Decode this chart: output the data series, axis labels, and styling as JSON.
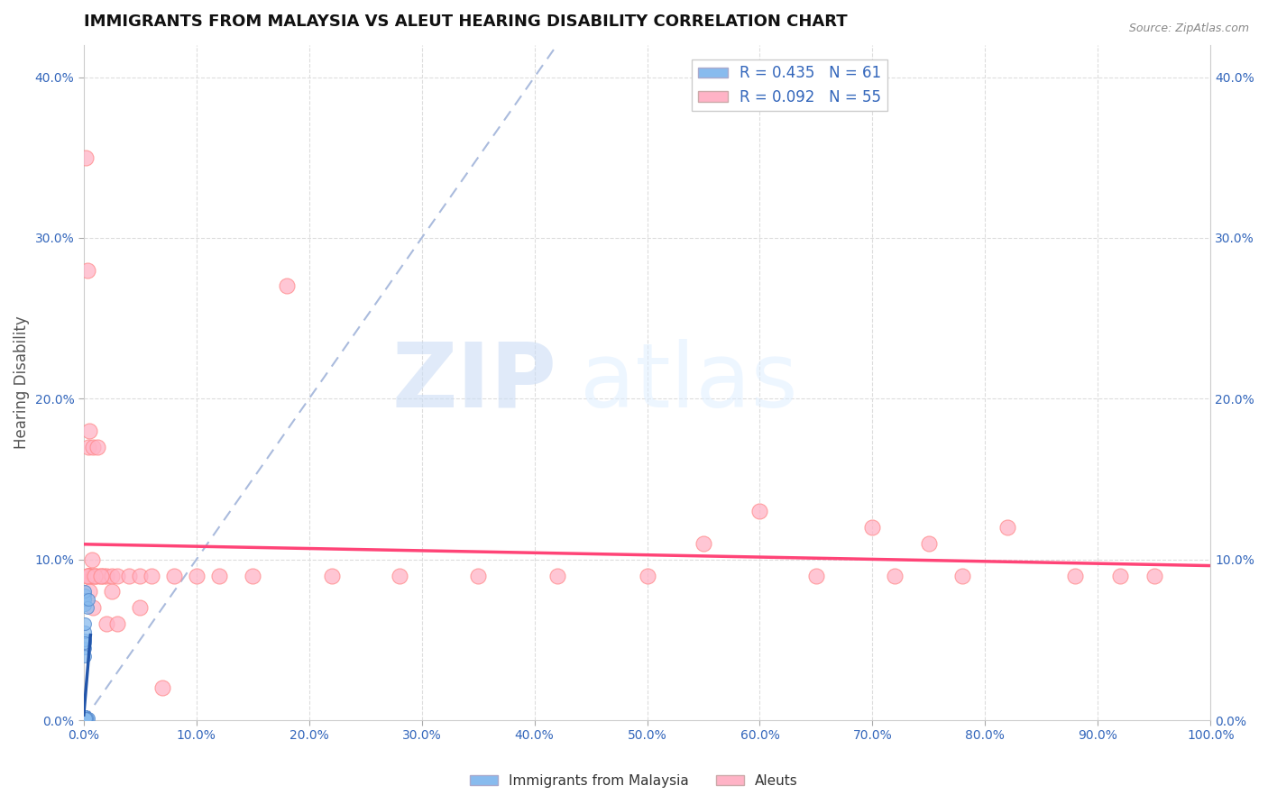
{
  "title": "IMMIGRANTS FROM MALAYSIA VS ALEUT HEARING DISABILITY CORRELATION CHART",
  "source_text": "Source: ZipAtlas.com",
  "ylabel": "Hearing Disability",
  "xlim": [
    0,
    1.0
  ],
  "ylim": [
    0,
    0.42
  ],
  "xticks": [
    0,
    0.1,
    0.2,
    0.3,
    0.4,
    0.5,
    0.6,
    0.7,
    0.8,
    0.9,
    1.0
  ],
  "xtick_labels": [
    "0.0%",
    "10.0%",
    "20.0%",
    "30.0%",
    "40.0%",
    "50.0%",
    "60.0%",
    "70.0%",
    "80.0%",
    "90.0%",
    "100.0%"
  ],
  "yticks": [
    0,
    0.1,
    0.2,
    0.3,
    0.4
  ],
  "ytick_labels": [
    "0.0%",
    "10.0%",
    "20.0%",
    "30.0%",
    "40.0%"
  ],
  "blue_color": "#88BBEE",
  "blue_edge_color": "#5588CC",
  "pink_color": "#FFB3C6",
  "pink_edge_color": "#FF8888",
  "blue_line_color": "#2255AA",
  "pink_line_color": "#FF4477",
  "ref_line_color": "#AABBDD",
  "grid_color": "#DDDDDD",
  "blue_R": 0.435,
  "blue_N": 61,
  "pink_R": 0.092,
  "pink_N": 55,
  "legend_label_blue": "Immigrants from Malaysia",
  "legend_label_pink": "Aleuts",
  "watermark_zip": "ZIP",
  "watermark_atlas": "atlas",
  "blue_scatter_x": [
    0.0008,
    0.001,
    0.0012,
    0.0009,
    0.0015,
    0.001,
    0.0008,
    0.0011,
    0.0009,
    0.001,
    0.0013,
    0.0008,
    0.001,
    0.0009,
    0.0012,
    0.001,
    0.0008,
    0.0011,
    0.0009,
    0.001,
    0.0013,
    0.0008,
    0.001,
    0.0009,
    0.0012,
    0.001,
    0.0008,
    0.0011,
    0.0009,
    0.001,
    0.0013,
    0.0008,
    0.001,
    0.0009,
    0.0012,
    0.001,
    0.0008,
    0.0011,
    0.0009,
    0.001,
    0.0013,
    0.0008,
    0.001,
    0.0009,
    0.0012,
    0.001,
    0.0008,
    0.0011,
    0.0009,
    0.001,
    0.0013,
    0.0008,
    0.001,
    0.0009,
    0.0012,
    0.0035,
    0.004,
    0.003,
    0.0038,
    0.0025,
    0.0015
  ],
  "blue_scatter_y": [
    0.002,
    0.001,
    0.001,
    0.002,
    0.001,
    0.001,
    0.002,
    0.001,
    0.001,
    0.002,
    0.001,
    0.001,
    0.002,
    0.001,
    0.001,
    0.002,
    0.001,
    0.001,
    0.002,
    0.001,
    0.001,
    0.002,
    0.001,
    0.001,
    0.002,
    0.001,
    0.001,
    0.002,
    0.001,
    0.001,
    0.002,
    0.001,
    0.001,
    0.002,
    0.001,
    0.001,
    0.002,
    0.001,
    0.001,
    0.002,
    0.001,
    0.001,
    0.002,
    0.001,
    0.001,
    0.045,
    0.05,
    0.055,
    0.06,
    0.04,
    0.048,
    0.072,
    0.078,
    0.075,
    0.08,
    0.07,
    0.075,
    0.001,
    0.001,
    0.001,
    0.001
  ],
  "pink_scatter_x": [
    0.002,
    0.004,
    0.003,
    0.005,
    0.003,
    0.004,
    0.006,
    0.004,
    0.005,
    0.007,
    0.005,
    0.008,
    0.01,
    0.008,
    0.012,
    0.015,
    0.012,
    0.018,
    0.02,
    0.025,
    0.03,
    0.04,
    0.05,
    0.06,
    0.08,
    0.1,
    0.12,
    0.15,
    0.18,
    0.22,
    0.28,
    0.35,
    0.42,
    0.5,
    0.55,
    0.6,
    0.65,
    0.7,
    0.72,
    0.75,
    0.78,
    0.82,
    0.88,
    0.92,
    0.95,
    0.003,
    0.005,
    0.008,
    0.01,
    0.015,
    0.02,
    0.025,
    0.03,
    0.05,
    0.07
  ],
  "pink_scatter_y": [
    0.35,
    0.09,
    0.09,
    0.18,
    0.28,
    0.09,
    0.09,
    0.17,
    0.09,
    0.1,
    0.09,
    0.09,
    0.09,
    0.17,
    0.09,
    0.09,
    0.17,
    0.09,
    0.09,
    0.09,
    0.09,
    0.09,
    0.09,
    0.09,
    0.09,
    0.09,
    0.09,
    0.09,
    0.27,
    0.09,
    0.09,
    0.09,
    0.09,
    0.09,
    0.11,
    0.13,
    0.09,
    0.12,
    0.09,
    0.11,
    0.09,
    0.12,
    0.09,
    0.09,
    0.09,
    0.09,
    0.08,
    0.07,
    0.09,
    0.09,
    0.06,
    0.08,
    0.06,
    0.07,
    0.02
  ]
}
